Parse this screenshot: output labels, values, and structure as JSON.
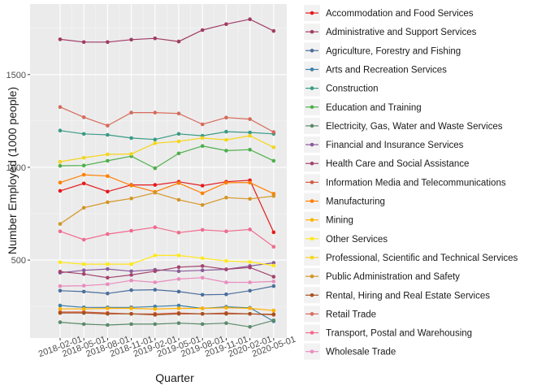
{
  "chart_data": {
    "type": "line",
    "xlabel": "Quarter",
    "ylabel": "Number Employed (1000 people)",
    "x": [
      "2018-02-01",
      "2018-05-01",
      "2018-08-01",
      "2018-11-01",
      "2019-02-01",
      "2019-05-01",
      "2019-08-01",
      "2019-11-01",
      "2020-02-01",
      "2020-05-01"
    ],
    "x_tick_labels": [
      "2018-02-01",
      "2018-05-01",
      "2018-08-01",
      "2018-11-01",
      "2019-02-01",
      "2019-05-01",
      "2019-08-01",
      "2019-11-01",
      "2020-02-01",
      "2020-05-01"
    ],
    "x_tick_label_rotation_deg": -20,
    "y_ticks": [
      500,
      1000,
      1500
    ],
    "ylim": [
      80,
      1880
    ],
    "grid": true,
    "legend_position": "right",
    "series": [
      {
        "name": "Accommodation and Food Services",
        "color": "#e41a1c",
        "values": [
          873,
          913,
          869,
          905,
          905,
          922,
          901,
          922,
          930,
          650
        ]
      },
      {
        "name": "Administrative and Support Services",
        "color": "#a03b63",
        "values": [
          1690,
          1675,
          1675,
          1688,
          1695,
          1678,
          1740,
          1772,
          1798,
          1735
        ]
      },
      {
        "name": "Agriculture, Forestry and Fishing",
        "color": "#4a6e9c",
        "values": [
          335,
          330,
          320,
          338,
          340,
          330,
          313,
          315,
          335,
          360
        ]
      },
      {
        "name": "Arts and Recreation Services",
        "color": "#3d7fa8",
        "values": [
          255,
          245,
          245,
          245,
          250,
          255,
          240,
          248,
          243,
          170
        ]
      },
      {
        "name": "Construction",
        "color": "#3a9a85",
        "values": [
          1198,
          1180,
          1175,
          1158,
          1150,
          1180,
          1170,
          1192,
          1188,
          1180
        ]
      },
      {
        "name": "Education and Training",
        "color": "#4daf4a",
        "values": [
          1008,
          1010,
          1035,
          1060,
          995,
          1075,
          1115,
          1090,
          1095,
          1035
        ]
      },
      {
        "name": "Electricity, Gas, Water and Waste Services",
        "color": "#5a8a6a",
        "values": [
          165,
          155,
          150,
          155,
          155,
          160,
          155,
          160,
          140,
          175
        ]
      },
      {
        "name": "Financial and Insurance Services",
        "color": "#8a5a9b",
        "values": [
          432,
          445,
          452,
          440,
          448,
          440,
          445,
          450,
          468,
          485
        ]
      },
      {
        "name": "Health Care and Social Assistance",
        "color": "#a2446e",
        "values": [
          438,
          425,
          405,
          420,
          440,
          462,
          468,
          450,
          460,
          410
        ]
      },
      {
        "name": "Information Media and Telecommunications",
        "color": "#d05d40",
        "values": [
          220,
          220,
          215,
          210,
          210,
          215,
          210,
          215,
          210,
          205
        ]
      },
      {
        "name": "Manufacturing",
        "color": "#ff7f00",
        "values": [
          918,
          960,
          953,
          902,
          868,
          915,
          860,
          917,
          918,
          858
        ]
      },
      {
        "name": "Mining",
        "color": "#ffb300",
        "values": [
          237,
          237,
          240,
          240,
          236,
          240,
          240,
          243,
          240,
          228
        ]
      },
      {
        "name": "Other Services",
        "color": "#ffe81a",
        "values": [
          488,
          478,
          478,
          478,
          525,
          525,
          510,
          495,
          490,
          470
        ]
      },
      {
        "name": "Professional, Scientific and Technical Services",
        "color": "#f5d61b",
        "values": [
          1030,
          1052,
          1070,
          1072,
          1130,
          1140,
          1158,
          1148,
          1170,
          1108
        ]
      },
      {
        "name": "Public Administration and Safety",
        "color": "#d49524",
        "values": [
          695,
          782,
          812,
          832,
          863,
          825,
          797,
          837,
          830,
          845
        ]
      },
      {
        "name": "Rental, Hiring and Real Estate Services",
        "color": "#a6501e",
        "values": [
          215,
          215,
          210,
          210,
          205,
          210,
          210,
          210,
          210,
          208
        ]
      },
      {
        "name": "Retail Trade",
        "color": "#d66a5a",
        "values": [
          1325,
          1270,
          1225,
          1295,
          1295,
          1290,
          1232,
          1268,
          1260,
          1190
        ]
      },
      {
        "name": "Transport, Postal and Warehousing",
        "color": "#f06b8e",
        "values": [
          655,
          610,
          640,
          658,
          677,
          648,
          663,
          655,
          665,
          572
        ]
      },
      {
        "name": "Wholesale Trade",
        "color": "#e88cbd",
        "values": [
          360,
          362,
          370,
          390,
          380,
          398,
          405,
          380,
          380,
          385
        ]
      }
    ]
  }
}
